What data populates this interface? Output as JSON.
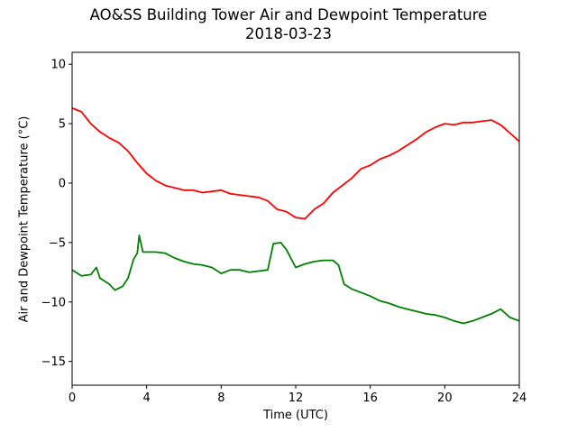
{
  "chart_data": {
    "type": "line",
    "title_lines": [
      "AO&SS Building Tower Air and Dewpoint Temperature",
      "2018-03-23"
    ],
    "xlabel": "Time (UTC)",
    "ylabel": "Air and Dewpoint Temperature (°C)",
    "xlim": [
      0,
      24
    ],
    "ylim": [
      -17,
      11
    ],
    "xticks": [
      0,
      4,
      8,
      12,
      16,
      20,
      24
    ],
    "yticks": [
      -15,
      -10,
      -5,
      0,
      5,
      10
    ],
    "xtick_labels": [
      "0",
      "4",
      "8",
      "12",
      "16",
      "20",
      "24"
    ],
    "ytick_labels": [
      "−15",
      "−10",
      "−5",
      "0",
      "5",
      "10"
    ],
    "grid": false,
    "series": [
      {
        "color": "#ff0000",
        "points": [
          [
            0,
            6.3
          ],
          [
            0.5,
            6.0
          ],
          [
            1,
            5.0
          ],
          [
            1.5,
            4.3
          ],
          [
            2,
            3.8
          ],
          [
            2.5,
            3.4
          ],
          [
            3,
            2.7
          ],
          [
            3.5,
            1.7
          ],
          [
            4,
            0.8
          ],
          [
            4.5,
            0.2
          ],
          [
            5,
            -0.2
          ],
          [
            5.5,
            -0.4
          ],
          [
            6,
            -0.6
          ],
          [
            6.5,
            -0.6
          ],
          [
            7,
            -0.8
          ],
          [
            7.5,
            -0.7
          ],
          [
            8,
            -0.6
          ],
          [
            8.5,
            -0.9
          ],
          [
            9,
            -1.0
          ],
          [
            9.5,
            -1.1
          ],
          [
            10,
            -1.2
          ],
          [
            10.5,
            -1.5
          ],
          [
            11,
            -2.2
          ],
          [
            11.5,
            -2.4
          ],
          [
            12,
            -2.9
          ],
          [
            12.5,
            -3.0
          ],
          [
            13,
            -2.2
          ],
          [
            13.5,
            -1.7
          ],
          [
            14,
            -0.8
          ],
          [
            14.5,
            -0.2
          ],
          [
            15,
            0.4
          ],
          [
            15.5,
            1.2
          ],
          [
            16,
            1.5
          ],
          [
            16.5,
            2.0
          ],
          [
            17,
            2.3
          ],
          [
            17.5,
            2.7
          ],
          [
            18,
            3.2
          ],
          [
            18.5,
            3.7
          ],
          [
            19,
            4.3
          ],
          [
            19.5,
            4.7
          ],
          [
            20,
            5.0
          ],
          [
            20.5,
            4.9
          ],
          [
            21,
            5.1
          ],
          [
            21.5,
            5.1
          ],
          [
            22,
            5.2
          ],
          [
            22.5,
            5.3
          ],
          [
            23,
            4.9
          ],
          [
            23.5,
            4.2
          ],
          [
            24,
            3.5
          ]
        ]
      },
      {
        "color": "#008000",
        "points": [
          [
            0,
            -7.3
          ],
          [
            0.5,
            -7.8
          ],
          [
            1,
            -7.7
          ],
          [
            1.3,
            -7.1
          ],
          [
            1.5,
            -8.0
          ],
          [
            2,
            -8.5
          ],
          [
            2.3,
            -9.0
          ],
          [
            2.7,
            -8.7
          ],
          [
            3,
            -8.0
          ],
          [
            3.3,
            -6.4
          ],
          [
            3.5,
            -5.9
          ],
          [
            3.6,
            -4.4
          ],
          [
            3.8,
            -5.8
          ],
          [
            4,
            -5.8
          ],
          [
            4.5,
            -5.8
          ],
          [
            5,
            -5.9
          ],
          [
            5.5,
            -6.3
          ],
          [
            6,
            -6.6
          ],
          [
            6.5,
            -6.8
          ],
          [
            7,
            -6.9
          ],
          [
            7.5,
            -7.1
          ],
          [
            8,
            -7.6
          ],
          [
            8.5,
            -7.3
          ],
          [
            9,
            -7.3
          ],
          [
            9.5,
            -7.5
          ],
          [
            10,
            -7.4
          ],
          [
            10.5,
            -7.3
          ],
          [
            10.8,
            -5.1
          ],
          [
            11.2,
            -5.0
          ],
          [
            11.5,
            -5.6
          ],
          [
            12,
            -7.1
          ],
          [
            12.5,
            -6.8
          ],
          [
            13,
            -6.6
          ],
          [
            13.5,
            -6.5
          ],
          [
            14,
            -6.5
          ],
          [
            14.3,
            -6.9
          ],
          [
            14.6,
            -8.5
          ],
          [
            15,
            -8.9
          ],
          [
            15.5,
            -9.2
          ],
          [
            16,
            -9.5
          ],
          [
            16.5,
            -9.9
          ],
          [
            17,
            -10.1
          ],
          [
            17.5,
            -10.4
          ],
          [
            18,
            -10.6
          ],
          [
            18.5,
            -10.8
          ],
          [
            19,
            -11.0
          ],
          [
            19.5,
            -11.1
          ],
          [
            20,
            -11.3
          ],
          [
            20.5,
            -11.6
          ],
          [
            21,
            -11.8
          ],
          [
            21.5,
            -11.6
          ],
          [
            22,
            -11.3
          ],
          [
            22.5,
            -11.0
          ],
          [
            23,
            -10.6
          ],
          [
            23.5,
            -11.3
          ],
          [
            24,
            -11.6
          ]
        ]
      }
    ]
  }
}
